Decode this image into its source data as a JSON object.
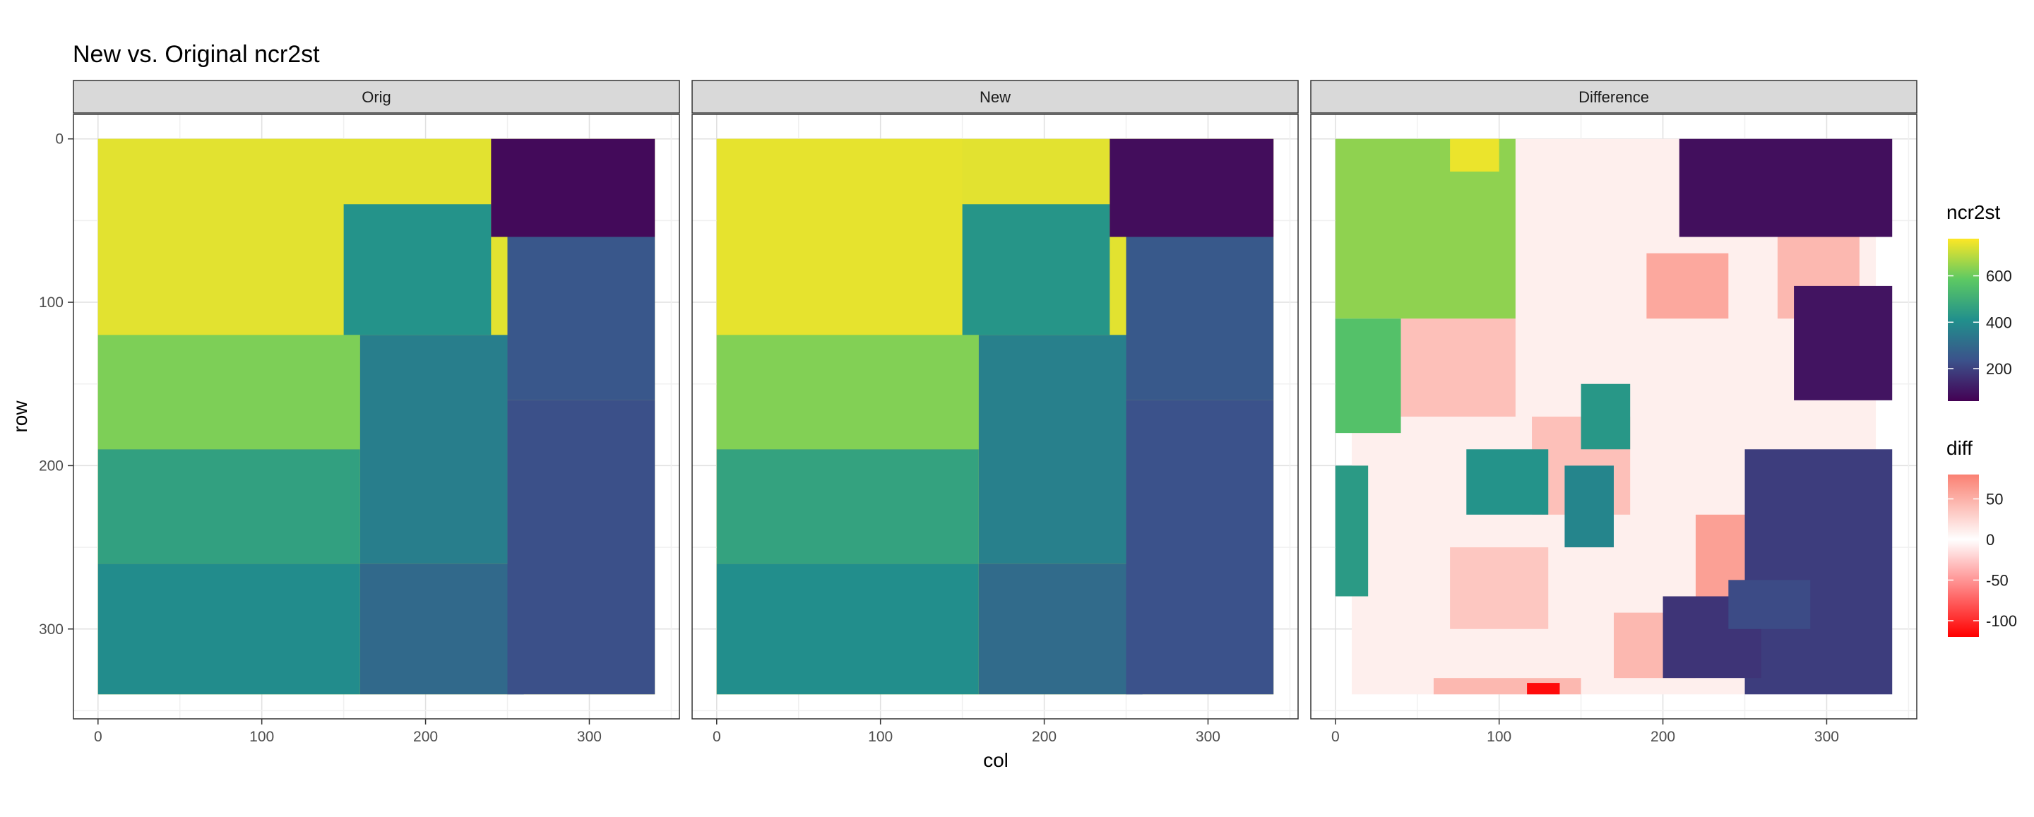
{
  "chart_data": {
    "type": "heatmap",
    "title": "New vs. Original ncr2st",
    "xlabel": "col",
    "ylabel": "row",
    "facets": [
      "Orig",
      "New",
      "Difference"
    ],
    "x_ticks": [
      0,
      100,
      200,
      300
    ],
    "y_ticks": [
      0,
      100,
      200,
      300
    ],
    "xlim": [
      -15,
      355
    ],
    "ylim": [
      355,
      -15
    ],
    "y_reversed": true,
    "grid": true,
    "grid_extent": {
      "col": [
        0,
        340
      ],
      "row": [
        0,
        340
      ]
    },
    "legends": [
      {
        "title": "ncr2st",
        "ticks": [
          200,
          400,
          600
        ],
        "range": [
          60,
          760
        ],
        "colors": [
          "#440154",
          "#3B528B",
          "#21908C",
          "#5DC963",
          "#FDE725"
        ]
      },
      {
        "title": "diff",
        "ticks": [
          50,
          0,
          -50,
          -100
        ],
        "range": [
          -120,
          80
        ],
        "colors": [
          "#FF0000",
          "#FFFFFF",
          "#FA8072"
        ]
      }
    ],
    "orig_regions": [
      {
        "name": "northwest-high",
        "col": [
          0,
          150
        ],
        "row": [
          0,
          120
        ],
        "value": 730
      },
      {
        "name": "west-upper",
        "col": [
          0,
          160
        ],
        "row": [
          120,
          190
        ],
        "value": 620
      },
      {
        "name": "central-west",
        "col": [
          0,
          160
        ],
        "row": [
          190,
          260
        ],
        "value": 460
      },
      {
        "name": "south-west",
        "col": [
          0,
          160
        ],
        "row": [
          260,
          340
        ],
        "value": 400
      },
      {
        "name": "north-center",
        "col": [
          150,
          240
        ],
        "row": [
          40,
          120
        ],
        "value": 420
      },
      {
        "name": "center",
        "col": [
          160,
          250
        ],
        "row": [
          120,
          260
        ],
        "value": 360
      },
      {
        "name": "south-center",
        "col": [
          160,
          260
        ],
        "row": [
          260,
          340
        ],
        "value": 300
      },
      {
        "name": "northeast",
        "col": [
          240,
          340
        ],
        "row": [
          0,
          60
        ],
        "value": 80
      },
      {
        "name": "east-upper",
        "col": [
          250,
          340
        ],
        "row": [
          60,
          160
        ],
        "value": 250
      },
      {
        "name": "east-lower",
        "col": [
          250,
          340
        ],
        "row": [
          160,
          340
        ],
        "value": 230
      }
    ],
    "new_regions": [
      {
        "name": "northwest-high",
        "col": [
          0,
          150
        ],
        "row": [
          0,
          120
        ],
        "value": 735
      },
      {
        "name": "west-upper",
        "col": [
          0,
          160
        ],
        "row": [
          120,
          190
        ],
        "value": 625
      },
      {
        "name": "central-west",
        "col": [
          0,
          160
        ],
        "row": [
          190,
          260
        ],
        "value": 465
      },
      {
        "name": "south-west",
        "col": [
          0,
          160
        ],
        "row": [
          260,
          340
        ],
        "value": 405
      },
      {
        "name": "north-center",
        "col": [
          150,
          240
        ],
        "row": [
          40,
          120
        ],
        "value": 425
      },
      {
        "name": "center",
        "col": [
          160,
          250
        ],
        "row": [
          120,
          260
        ],
        "value": 365
      },
      {
        "name": "south-center",
        "col": [
          160,
          260
        ],
        "row": [
          260,
          340
        ],
        "value": 305
      },
      {
        "name": "northeast",
        "col": [
          240,
          340
        ],
        "row": [
          0,
          60
        ],
        "value": 85
      },
      {
        "name": "east-upper",
        "col": [
          250,
          340
        ],
        "row": [
          60,
          160
        ],
        "value": 255
      },
      {
        "name": "east-lower",
        "col": [
          250,
          340
        ],
        "row": [
          160,
          340
        ],
        "value": 235
      }
    ],
    "diff_regions": [
      {
        "name": "light-a",
        "col": [
          10,
          330
        ],
        "row": [
          0,
          340
        ],
        "value": 10
      },
      {
        "name": "pink-1",
        "col": [
          40,
          110
        ],
        "row": [
          110,
          170
        ],
        "value": 40
      },
      {
        "name": "pink-2",
        "col": [
          190,
          240
        ],
        "row": [
          70,
          110
        ],
        "value": 55
      },
      {
        "name": "pink-3",
        "col": [
          270,
          320
        ],
        "row": [
          50,
          110
        ],
        "value": 45
      },
      {
        "name": "pink-4",
        "col": [
          120,
          180
        ],
        "row": [
          170,
          230
        ],
        "value": 40
      },
      {
        "name": "pink-5",
        "col": [
          220,
          270
        ],
        "row": [
          230,
          280
        ],
        "value": 60
      },
      {
        "name": "pink-6",
        "col": [
          70,
          130
        ],
        "row": [
          250,
          300
        ],
        "value": 35
      },
      {
        "name": "pink-7",
        "col": [
          170,
          220
        ],
        "row": [
          290,
          330
        ],
        "value": 45
      },
      {
        "name": "bottom-strip",
        "col": [
          60,
          150
        ],
        "row": [
          330,
          340
        ],
        "value": 45
      },
      {
        "name": "red-spot",
        "col": [
          117,
          137
        ],
        "row": [
          333,
          340
        ],
        "value": -115
      }
    ],
    "diff_ncr2st_overlays": [
      {
        "name": "yellow-green-nw",
        "col": [
          0,
          110
        ],
        "row": [
          0,
          110
        ],
        "value": 640
      },
      {
        "name": "yellow-n",
        "col": [
          70,
          100
        ],
        "row": [
          0,
          20
        ],
        "value": 740
      },
      {
        "name": "green-w",
        "col": [
          0,
          40
        ],
        "row": [
          110,
          180
        ],
        "value": 560
      },
      {
        "name": "teal-1",
        "col": [
          80,
          130
        ],
        "row": [
          190,
          230
        ],
        "value": 420
      },
      {
        "name": "teal-2",
        "col": [
          140,
          170
        ],
        "row": [
          200,
          250
        ],
        "value": 380
      },
      {
        "name": "teal-3",
        "col": [
          150,
          180
        ],
        "row": [
          150,
          190
        ],
        "value": 430
      },
      {
        "name": "teal-4",
        "col": [
          300,
          320
        ],
        "row": [
          40,
          60
        ],
        "value": 400
      },
      {
        "name": "dark-ne",
        "col": [
          210,
          340
        ],
        "row": [
          0,
          60
        ],
        "value": 90
      },
      {
        "name": "dark-e",
        "col": [
          280,
          340
        ],
        "row": [
          90,
          160
        ],
        "value": 100
      },
      {
        "name": "navy-se",
        "col": [
          250,
          340
        ],
        "row": [
          190,
          340
        ],
        "value": 190
      },
      {
        "name": "navy-s",
        "col": [
          200,
          260
        ],
        "row": [
          280,
          330
        ],
        "value": 170
      },
      {
        "name": "navy-2",
        "col": [
          240,
          290
        ],
        "row": [
          270,
          300
        ],
        "value": 220
      },
      {
        "name": "teal-sw",
        "col": [
          0,
          20
        ],
        "row": [
          200,
          280
        ],
        "value": 440
      }
    ]
  }
}
